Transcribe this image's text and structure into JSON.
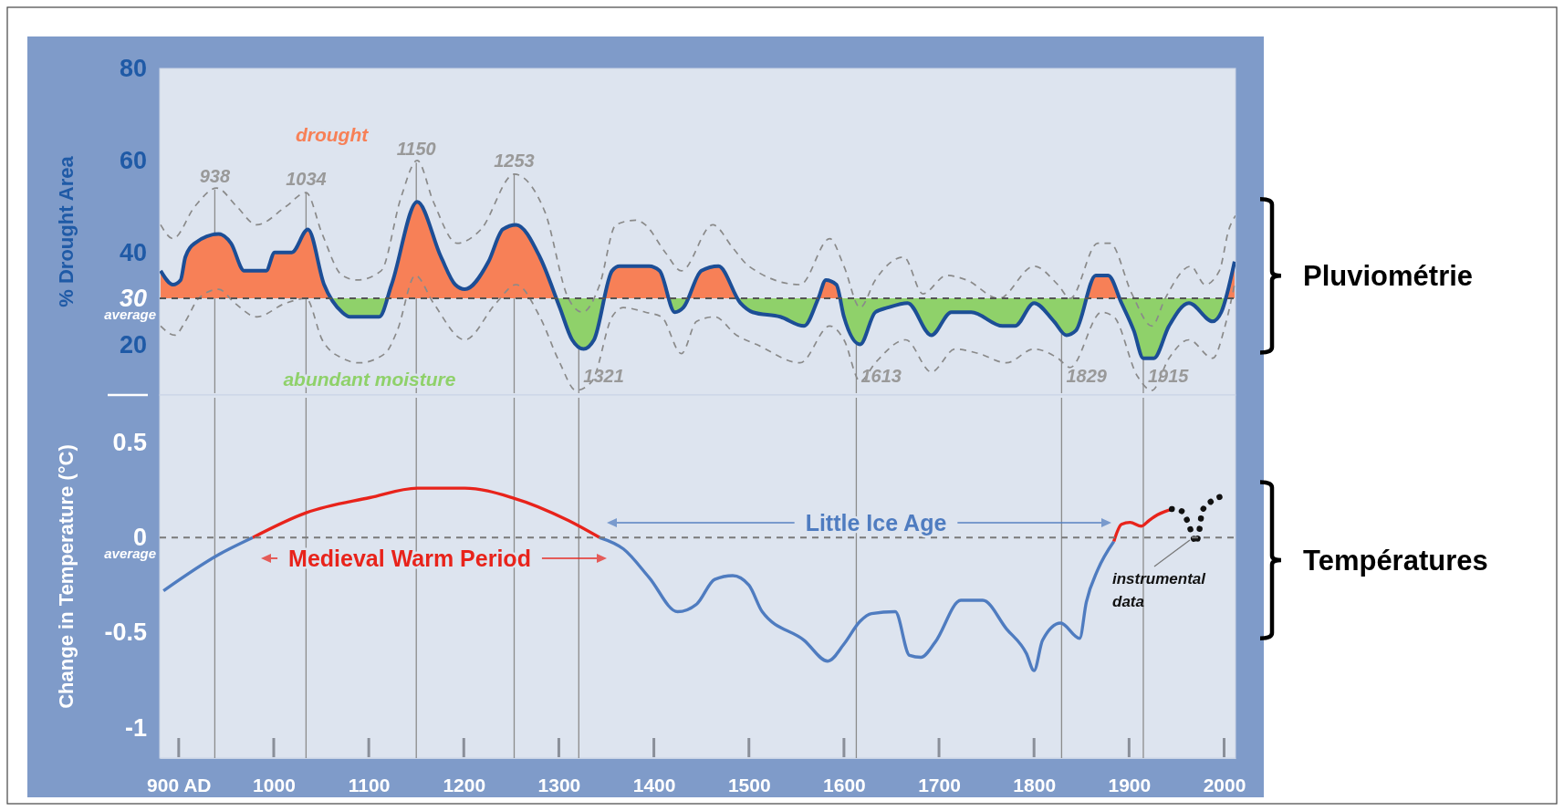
{
  "chart_data": [
    {
      "type": "line",
      "ylabel": "% Drought Area",
      "xlim": [
        880,
        2012
      ],
      "ylim": [
        9,
        80
      ],
      "yticks": [
        20,
        30,
        40,
        60,
        80
      ],
      "tick_labels": "y",
      "x": [
        881,
        894,
        902,
        907,
        917,
        942,
        955,
        969,
        992,
        1001,
        1019,
        1036,
        1053,
        1072,
        1080,
        1111,
        1124,
        1151,
        1176,
        1191,
        1201,
        1226,
        1241,
        1255,
        1280,
        1301,
        1314,
        1326,
        1337,
        1356,
        1364,
        1395,
        1406,
        1422,
        1431,
        1450,
        1468,
        1491,
        1504,
        1533,
        1558,
        1573,
        1581,
        1592,
        1600,
        1617,
        1633,
        1646,
        1667,
        1692,
        1713,
        1734,
        1767,
        1780,
        1800,
        1821,
        1834,
        1844,
        1865,
        1878,
        1892,
        1905,
        1915,
        1926,
        1942,
        1963,
        1988,
        1997,
        2011
      ],
      "series": [
        {
          "name": "drought",
          "type": "area",
          "color": "#f78057",
          "x": [
            881,
            894,
            902,
            907,
            917,
            942,
            955,
            969,
            992,
            1001,
            1019,
            1036,
            1053,
            1062,
            1090,
            1118,
            1124,
            1151,
            1176,
            1191,
            1201,
            1226,
            1241,
            1255,
            1280,
            1297,
            1320,
            1348,
            1356,
            1364,
            1395,
            1406,
            1417,
            1426,
            1436,
            1450,
            1468,
            1488,
            1530,
            1573,
            1581,
            1592,
            1595,
            1700,
            1856,
            1865,
            1878,
            1890,
            1950,
            2001,
            2011
          ],
          "values": [
            36,
            33,
            34,
            39,
            42,
            44,
            42,
            36,
            36,
            40,
            40,
            45,
            33,
            30,
            null,
            30,
            33,
            51,
            39,
            33,
            32,
            38,
            45,
            46,
            39,
            30,
            null,
            30,
            36,
            37,
            37,
            36,
            30,
            null,
            30,
            36,
            37,
            30,
            null,
            30,
            34,
            33,
            30,
            null,
            30,
            35,
            35,
            30,
            null,
            30,
            38
          ]
        },
        {
          "name": "abundant moisture",
          "type": "area",
          "color": "#8fd16a",
          "x": [
            1062,
            1072,
            1080,
            1111,
            1118,
            1200,
            1297,
            1301,
            1314,
            1326,
            1337,
            1348,
            1380,
            1417,
            1422,
            1431,
            1436,
            1460,
            1488,
            1491,
            1504,
            1533,
            1558,
            1573,
            1584,
            1595,
            1600,
            1617,
            1633,
            1646,
            1667,
            1692,
            1713,
            1734,
            1767,
            1780,
            1800,
            1821,
            1834,
            1844,
            1856,
            1870,
            1890,
            1892,
            1905,
            1915,
            1926,
            1942,
            1963,
            1988,
            1997,
            2001
          ],
          "values": [
            30,
            27,
            26,
            26,
            30,
            null,
            30,
            28,
            21,
            19,
            21,
            30,
            null,
            30,
            27,
            28,
            30,
            null,
            30,
            29,
            27,
            26,
            24,
            30,
            null,
            30,
            26,
            20,
            27,
            28,
            29,
            22,
            27,
            27,
            24,
            24,
            29,
            25,
            22,
            23,
            30,
            null,
            30,
            29,
            23,
            17,
            17,
            24,
            29,
            25,
            27,
            30
          ]
        },
        {
          "color": "#8a8a8a",
          "line_style": "dashed",
          "x": [
            881,
            894,
            917,
            940,
            961,
            982,
            1013,
            1034,
            1051,
            1072,
            1088,
            1113,
            1134,
            1151,
            1168,
            1193,
            1218,
            1253,
            1285,
            1310,
            1325,
            1343,
            1360,
            1381,
            1391,
            1412,
            1429,
            1462,
            1483,
            1500,
            1554,
            1585,
            1600,
            1617,
            1633,
            1663,
            1683,
            1708,
            1729,
            1763,
            1800,
            1825,
            1838,
            1867,
            1880,
            1903,
            1924,
            1938,
            1965,
            1980,
            1995,
            2005,
            2012
          ],
          "values": [
            46,
            43,
            50,
            54,
            50,
            46,
            50,
            53,
            44,
            35,
            34,
            36,
            52,
            60,
            51,
            42,
            45,
            57,
            49,
            30,
            27,
            33,
            46,
            47,
            46,
            40,
            36,
            46,
            41,
            37,
            33,
            43,
            37,
            28,
            34,
            39,
            31,
            35,
            34,
            30,
            37,
            33,
            30,
            42,
            42,
            31,
            24,
            30,
            37,
            33,
            36,
            45,
            48
          ]
        },
        {
          "color": "#8a8a8a",
          "line_style": "dashed",
          "x": [
            881,
            896,
            907,
            921,
            942,
            959,
            982,
            1013,
            1034,
            1051,
            1072,
            1090,
            1117,
            1130,
            1149,
            1168,
            1201,
            1234,
            1255,
            1280,
            1301,
            1318,
            1335,
            1356,
            1368,
            1391,
            1408,
            1429,
            1445,
            1464,
            1487,
            1508,
            1554,
            1585,
            1600,
            1617,
            1633,
            1665,
            1692,
            1717,
            1742,
            1771,
            1800,
            1825,
            1838,
            1871,
            1884,
            1909,
            1924,
            1942,
            1963,
            1988,
            2001,
            2011
          ],
          "values": [
            24,
            22,
            25,
            30,
            32,
            29,
            26,
            29,
            30,
            21,
            17,
            16,
            18,
            23,
            35,
            29,
            21,
            29,
            33,
            26,
            16,
            10,
            12,
            26,
            28,
            27,
            26,
            18,
            25,
            26,
            22,
            20,
            16,
            24,
            21,
            12,
            16,
            21,
            14,
            19,
            18,
            16,
            19,
            17,
            15,
            27,
            26,
            13,
            10,
            17,
            21,
            17,
            24,
            33
          ]
        },
        {
          "color": "#1c4e96",
          "values": [
            36,
            33,
            34,
            39,
            42,
            44,
            42,
            36,
            36,
            40,
            40,
            45,
            33,
            27,
            26,
            26,
            33,
            51,
            39,
            33,
            32,
            38,
            45,
            46,
            39,
            28,
            21,
            19,
            21,
            36,
            37,
            37,
            36,
            27,
            28,
            36,
            37,
            29,
            27,
            26,
            24,
            30,
            34,
            33,
            26,
            20,
            27,
            28,
            29,
            22,
            27,
            27,
            24,
            24,
            29,
            25,
            22,
            23,
            35,
            35,
            29,
            23,
            17,
            17,
            24,
            29,
            25,
            27,
            38
          ]
        }
      ],
      "ref_lines": [
        {
          "axis": "y",
          "value": 30,
          "label": "average",
          "color": "#555555",
          "line_style": "dashed"
        },
        {
          "axis": "x",
          "value": 938,
          "label": "938",
          "color": "#8c8c8c"
        },
        {
          "axis": "x",
          "value": 1034,
          "label": "1034",
          "color": "#8c8c8c"
        },
        {
          "axis": "x",
          "value": 1150,
          "label": "1150",
          "color": "#8c8c8c"
        },
        {
          "axis": "x",
          "value": 1253,
          "label": "1253",
          "color": "#8c8c8c"
        },
        {
          "axis": "x",
          "value": 1321,
          "label": "1321",
          "color": "#8c8c8c"
        },
        {
          "axis": "x",
          "value": 1613,
          "label": "1613",
          "color": "#8c8c8c"
        },
        {
          "axis": "x",
          "value": 1829,
          "label": "1829",
          "color": "#8c8c8c"
        },
        {
          "axis": "x",
          "value": 1915,
          "label": "1915",
          "color": "#8c8c8c"
        }
      ],
      "annotations": [
        "Pluviométrie"
      ]
    },
    {
      "type": "line",
      "ylabel": "Change in Temperature (°C)",
      "xlim": [
        880,
        2012
      ],
      "ylim": [
        -1.16,
        0.75
      ],
      "yticks": [
        -1,
        -0.5,
        0,
        0.5
      ],
      "xticks": [
        {
          "value": 900,
          "label": "900 AD"
        },
        1000,
        1100,
        1200,
        1300,
        1400,
        1500,
        1600,
        1700,
        1800,
        1900,
        2000
      ],
      "series": [
        {
          "color": "#4f7cc0",
          "x": [
            884,
            942,
            978
          ],
          "values": [
            -0.28,
            -0.09,
            0
          ]
        },
        {
          "color": "#e8231b",
          "x": [
            978,
            1034,
            1101,
            1151,
            1176,
            1201,
            1251,
            1310,
            1343
          ],
          "values": [
            0,
            0.13,
            0.21,
            0.26,
            0.26,
            0.26,
            0.21,
            0.09,
            0
          ]
        },
        {
          "color": "#4f7cc0",
          "x": [
            1343,
            1368,
            1395,
            1425,
            1445,
            1464,
            1483,
            1500,
            1514,
            1558,
            1583,
            1600,
            1617,
            1629,
            1654,
            1669,
            1681,
            1696,
            1723,
            1746,
            1771,
            1792,
            1800,
            1809,
            1828,
            1848,
            1855,
            1867,
            1884
          ],
          "values": [
            0,
            -0.06,
            -0.21,
            -0.39,
            -0.35,
            -0.22,
            -0.2,
            -0.25,
            -0.39,
            -0.54,
            -0.65,
            -0.56,
            -0.44,
            -0.4,
            -0.39,
            -0.62,
            -0.63,
            -0.55,
            -0.33,
            -0.33,
            -0.48,
            -0.61,
            -0.7,
            -0.54,
            -0.45,
            -0.53,
            -0.34,
            -0.17,
            -0.02
          ]
        },
        {
          "color": "#e8231b",
          "x": [
            1884,
            1892,
            1901,
            1913,
            1921,
            1930,
            1945
          ],
          "values": [
            -0.02,
            0.07,
            0.08,
            0.06,
            0.09,
            0.12,
            0.15
          ]
        },
        {
          "color": "#111111",
          "line_style": "dotted",
          "x": [
            1945,
            1955,
            1967,
            1970,
            1974,
            1977,
            1984,
            1999
          ],
          "values": [
            0.15,
            0.14,
            0.01,
            -0.03,
            0.04,
            0.14,
            0.18,
            0.22
          ]
        }
      ],
      "ref_lines": [
        {
          "axis": "y",
          "value": 0,
          "label": "average",
          "color": "#7a7a7a",
          "line_style": "dashed"
        },
        {
          "axis": "x",
          "value": 938,
          "color": "#8c8c8c"
        },
        {
          "axis": "x",
          "value": 1034,
          "color": "#8c8c8c"
        },
        {
          "axis": "x",
          "value": 1150,
          "color": "#8c8c8c"
        },
        {
          "axis": "x",
          "value": 1253,
          "color": "#8c8c8c"
        },
        {
          "axis": "x",
          "value": 1321,
          "color": "#8c8c8c"
        },
        {
          "axis": "x",
          "value": 1613,
          "color": "#8c8c8c"
        },
        {
          "axis": "x",
          "value": 1829,
          "color": "#8c8c8c"
        },
        {
          "axis": "x",
          "value": 1915,
          "color": "#8c8c8c"
        }
      ],
      "annotations": [
        "Medieval Warm Period",
        "Little Ice Age",
        "instrumental data",
        "Températures"
      ]
    }
  ]
}
